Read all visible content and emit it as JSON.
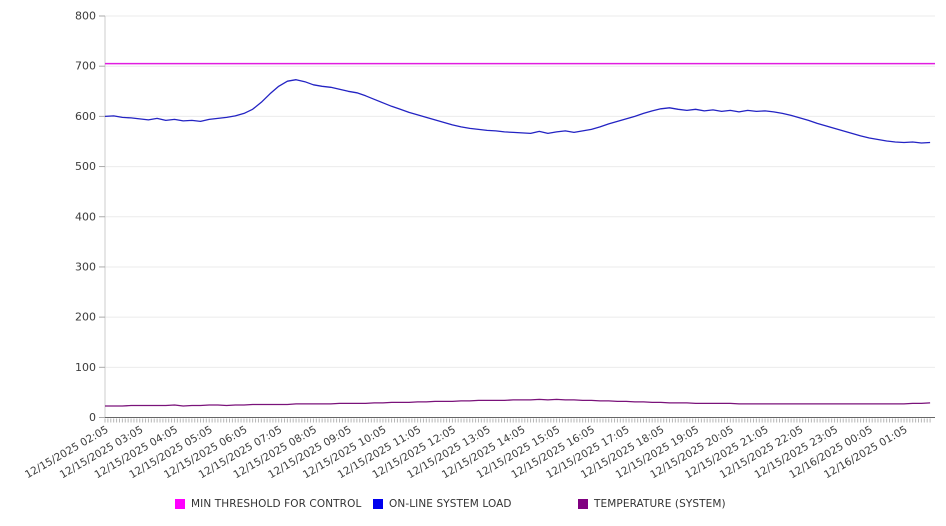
{
  "chart_data": {
    "type": "line",
    "title": "",
    "xlabel": "",
    "ylabel": "",
    "ylim": [
      0,
      800
    ],
    "yticks": [
      0,
      100,
      200,
      300,
      400,
      500,
      600,
      700,
      800
    ],
    "grid": "horizontal",
    "legend_position": "bottom",
    "x_tick_labels": [
      "12/15/2025 02:05",
      "12/15/2025 03:05",
      "12/15/2025 04:05",
      "12/15/2025 05:05",
      "12/15/2025 06:05",
      "12/15/2025 07:05",
      "12/15/2025 08:05",
      "12/15/2025 09:05",
      "12/15/2025 10:05",
      "12/15/2025 11:05",
      "12/15/2025 12:05",
      "12/15/2025 13:05",
      "12/15/2025 14:05",
      "12/15/2025 15:05",
      "12/15/2025 16:05",
      "12/15/2025 17:05",
      "12/15/2025 18:05",
      "12/15/2025 19:05",
      "12/15/2025 20:05",
      "12/15/2025 21:05",
      "12/15/2025 22:05",
      "12/15/2025 23:05",
      "12/16/2025 00:05",
      "12/16/2025 01:05"
    ],
    "x_minor_tick_minutes": 5,
    "x_sample_step_minutes": 15,
    "series": [
      {
        "name": "MIN THRESHOLD FOR CONTROL",
        "type": "constant",
        "value": 705,
        "color": "#e01ce0",
        "legend_color": "#ff00ff"
      },
      {
        "name": "ON-LINE SYSTEM LOAD",
        "type": "line",
        "color": "#2323c3",
        "legend_color": "#0000ee",
        "values": [
          600,
          601,
          598,
          597,
          595,
          593,
          596,
          592,
          594,
          591,
          592,
          590,
          594,
          596,
          598,
          601,
          606,
          614,
          628,
          645,
          660,
          670,
          673,
          669,
          663,
          660,
          658,
          654,
          650,
          647,
          641,
          634,
          627,
          620,
          614,
          608,
          603,
          598,
          593,
          588,
          583,
          579,
          576,
          574,
          572,
          571,
          569,
          568,
          567,
          566,
          570,
          566,
          569,
          571,
          568,
          571,
          574,
          579,
          585,
          590,
          595,
          600,
          606,
          611,
          615,
          617,
          614,
          612,
          614,
          611,
          613,
          610,
          612,
          609,
          612,
          610,
          611,
          609,
          606,
          602,
          597,
          592,
          586,
          581,
          576,
          571,
          566,
          561,
          557,
          554,
          551,
          549,
          548,
          549,
          547,
          548
        ]
      },
      {
        "name": "TEMPERATURE (SYSTEM)",
        "type": "line",
        "color": "#7a127a",
        "legend_color": "#800080",
        "values": [
          23,
          23,
          23,
          24,
          24,
          24,
          24,
          24,
          25,
          23,
          24,
          24,
          25,
          25,
          24,
          25,
          25,
          26,
          26,
          26,
          26,
          26,
          27,
          27,
          27,
          27,
          27,
          28,
          28,
          28,
          28,
          29,
          29,
          30,
          30,
          30,
          31,
          31,
          32,
          32,
          32,
          33,
          33,
          34,
          34,
          34,
          34,
          35,
          35,
          35,
          36,
          35,
          36,
          35,
          35,
          34,
          34,
          33,
          33,
          32,
          32,
          31,
          31,
          30,
          30,
          29,
          29,
          29,
          28,
          28,
          28,
          28,
          28,
          27,
          27,
          27,
          27,
          27,
          27,
          27,
          27,
          27,
          27,
          27,
          27,
          27,
          27,
          27,
          27,
          27,
          27,
          27,
          27,
          28,
          28,
          29
        ]
      }
    ]
  }
}
